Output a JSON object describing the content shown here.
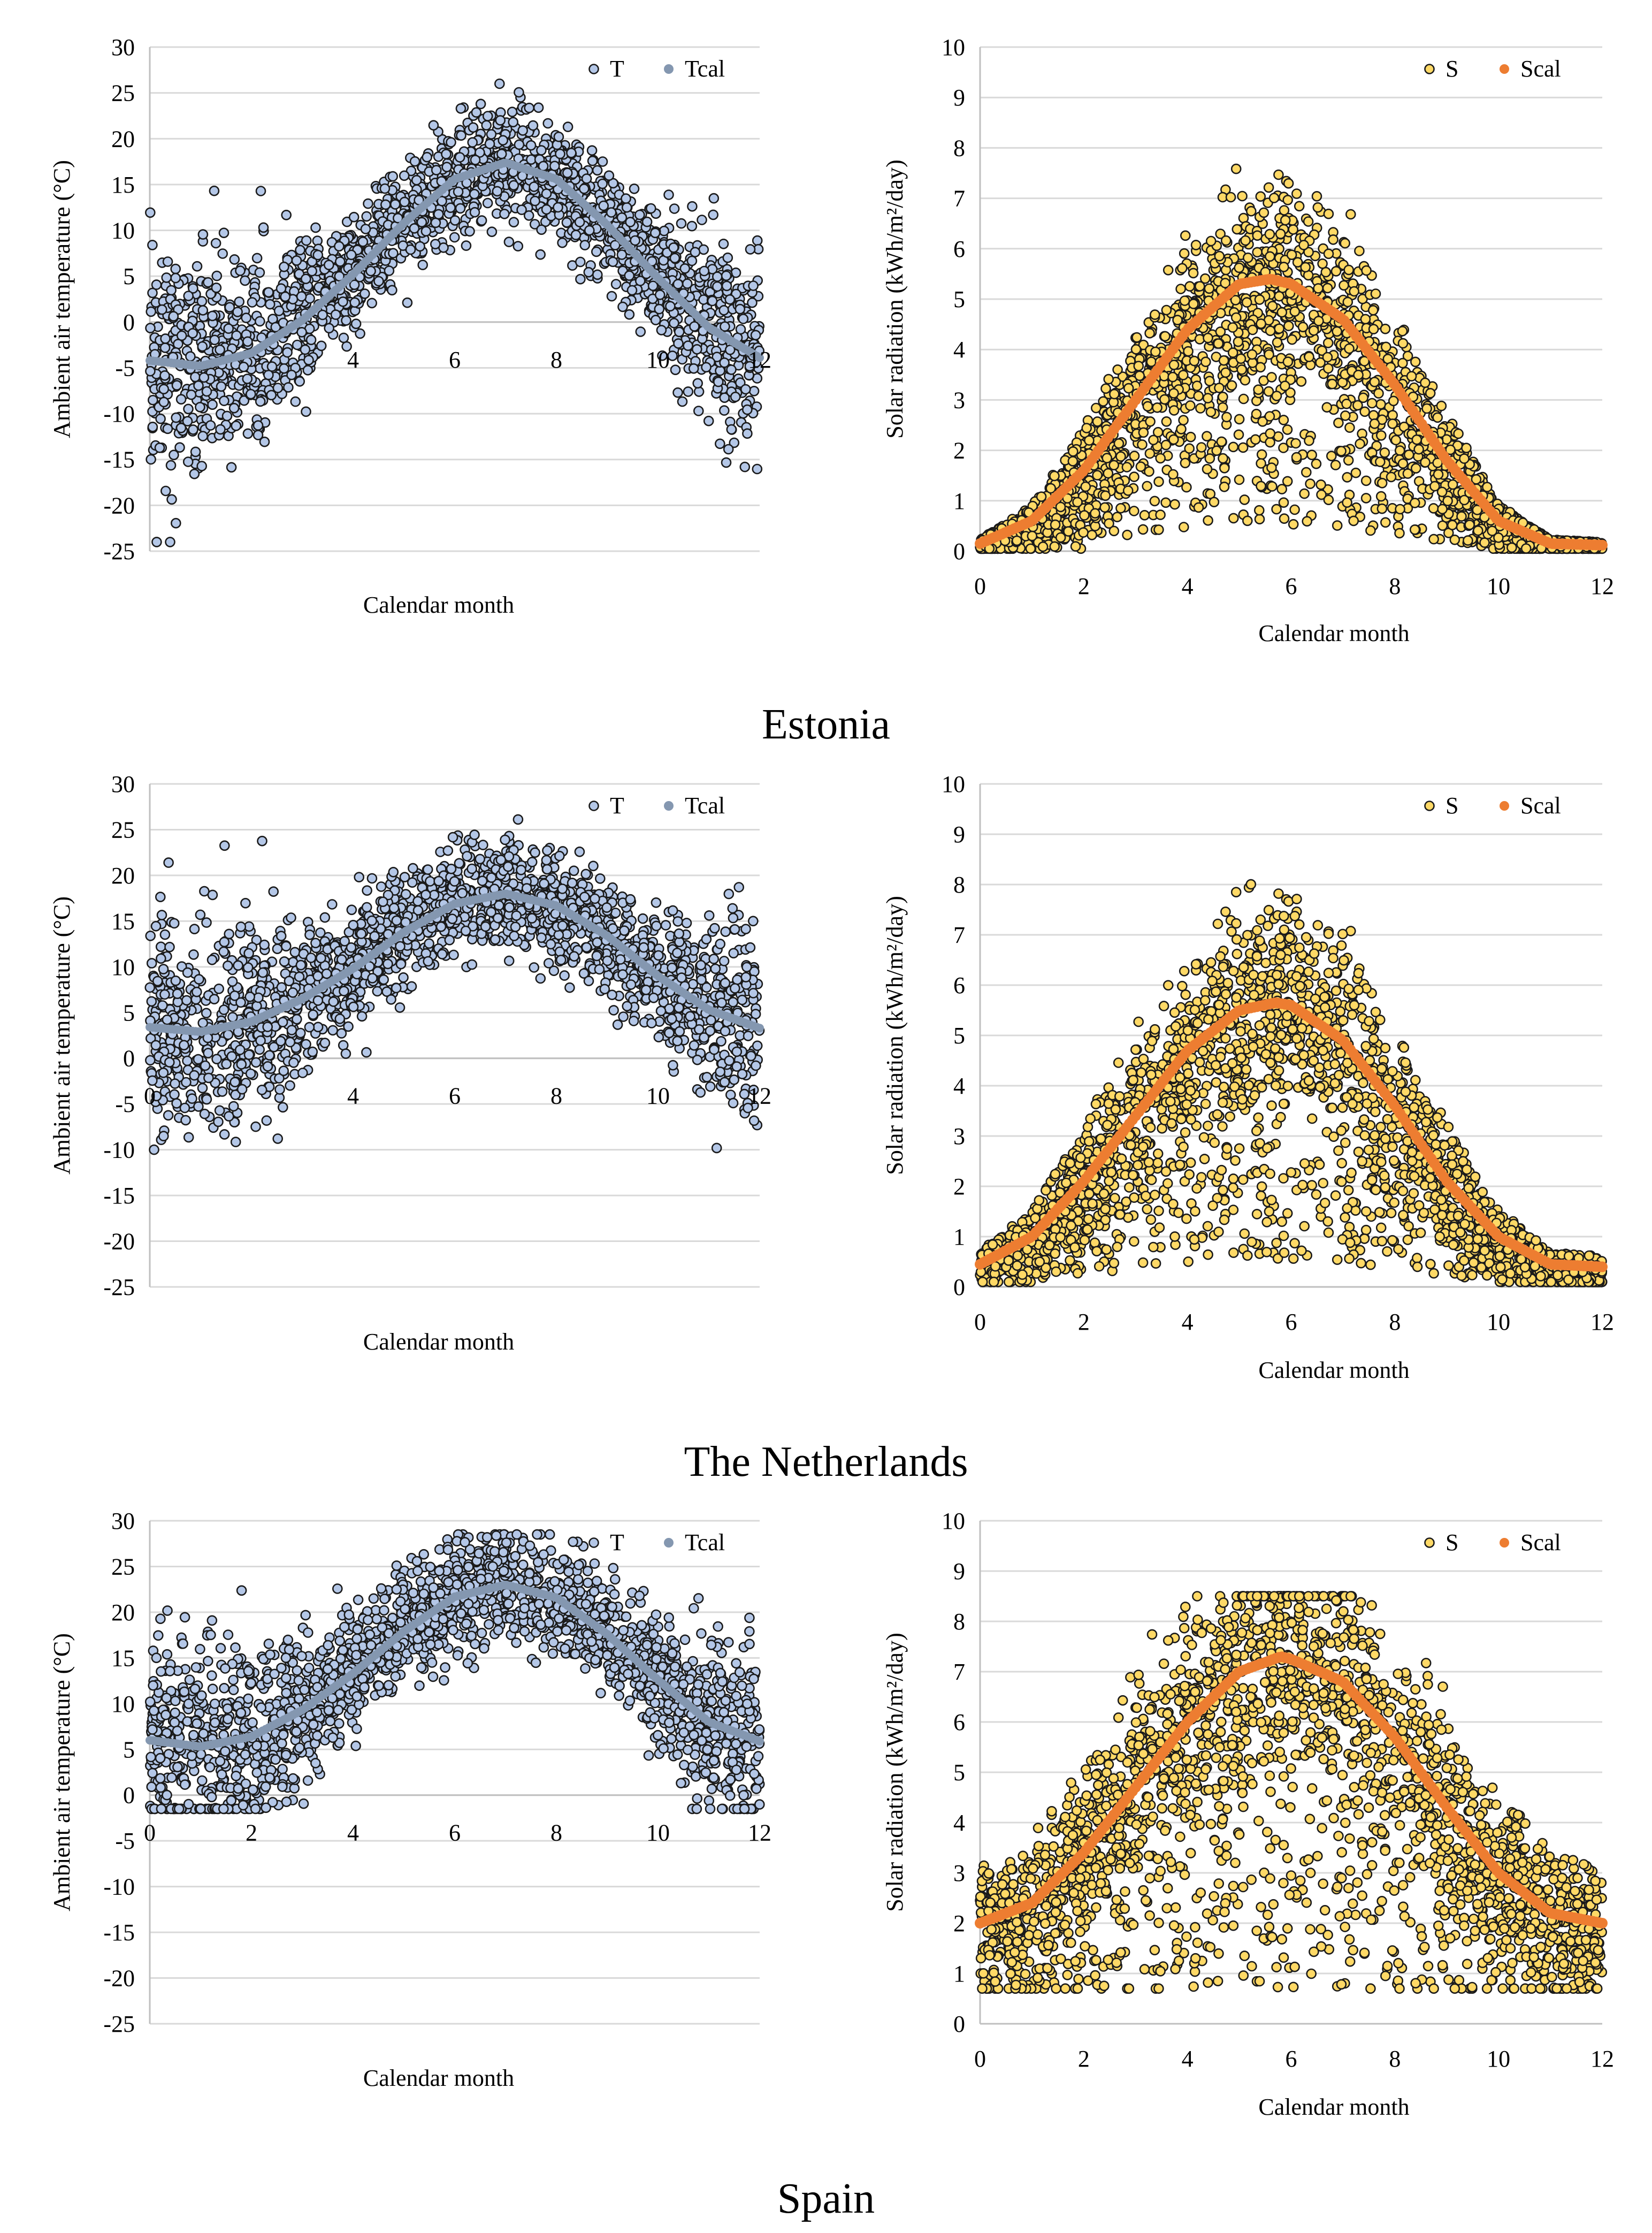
{
  "captions": [
    "Estonia",
    "The Netherlands",
    "Spain"
  ],
  "legend_colors": {
    "T_fill": "#b4c7e7",
    "T_stroke": "#1a1a1a",
    "Tcal": "#8497b0",
    "S_fill": "#ffd966",
    "S_stroke": "#1a1a1a",
    "Scal": "#ed7d31"
  },
  "chart_data": [
    {
      "id": "estonia-temperature",
      "type": "scatter",
      "xlabel": "Calendar month",
      "ylabel": "Ambient air temperature (°C)",
      "xlim": [
        0,
        12
      ],
      "ylim": [
        -25,
        30
      ],
      "x_ticks": [
        "4",
        "6",
        "8",
        "10",
        "12"
      ],
      "y_ticks": [
        "30",
        "25",
        "20",
        "15",
        "10",
        "5",
        "0",
        "-5",
        "-10",
        "-15",
        "-20",
        "-25"
      ],
      "series": [
        {
          "name": "T",
          "kind": "scatter",
          "note": "daily observations; sinusoidal seasonal pattern with min ≈ -4.8 °C near month 1 and max ≈ 17.5 °C near month 6.7; spread up to ±10 °C",
          "y_min": -24,
          "y_max": 26
        },
        {
          "name": "Tcal",
          "kind": "line",
          "x": [
            0,
            1,
            2,
            3,
            4,
            5,
            6,
            7,
            8,
            9,
            10,
            11,
            12
          ],
          "y": [
            -4.2,
            -4.8,
            -3.4,
            0.2,
            5.2,
            10.8,
            15.6,
            17.4,
            15.6,
            10.6,
            4.8,
            -0.6,
            -3.9
          ]
        }
      ]
    },
    {
      "id": "estonia-solar",
      "type": "scatter",
      "xlabel": "Calendar month",
      "ylabel": "Solar radiation (kWh/m²/day)",
      "xlim": [
        0,
        12
      ],
      "ylim": [
        0,
        10
      ],
      "x_ticks": [
        "0",
        "2",
        "4",
        "6",
        "8",
        "10",
        "12"
      ],
      "y_ticks": [
        "10",
        "9",
        "8",
        "7",
        "6",
        "5",
        "4",
        "3",
        "2",
        "1",
        "0"
      ],
      "series": [
        {
          "name": "S",
          "kind": "scatter",
          "note": "daily observations; peak values up to ≈ 8.1 near month 5.5; many low (cloudy) days below the fit",
          "y_min": 0.05,
          "y_max": 8.1
        },
        {
          "name": "Scal",
          "kind": "line",
          "x": [
            0,
            1,
            2,
            3,
            4,
            5,
            5.6,
            6,
            7,
            8,
            9,
            10,
            11,
            12
          ],
          "y": [
            0.15,
            0.6,
            1.6,
            3.0,
            4.4,
            5.3,
            5.4,
            5.3,
            4.6,
            3.3,
            1.8,
            0.6,
            0.15,
            0.12
          ]
        }
      ]
    },
    {
      "id": "netherlands-temperature",
      "type": "scatter",
      "xlabel": "Calendar month",
      "ylabel": "Ambient air temperature (°C)",
      "xlim": [
        0,
        12
      ],
      "ylim": [
        -25,
        30
      ],
      "x_ticks": [
        "0",
        "4",
        "6",
        "8",
        "10",
        "12"
      ],
      "y_ticks": [
        "30",
        "25",
        "20",
        "15",
        "10",
        "5",
        "0",
        "-5",
        "-10",
        "-15",
        "-20",
        "-25"
      ],
      "series": [
        {
          "name": "T",
          "kind": "scatter",
          "note": "daily observations; min fit ≈ 3 °C near month 0.6, max fit ≈ 18 °C near month 6.8",
          "y_min": -10,
          "y_max": 28.5
        },
        {
          "name": "Tcal",
          "kind": "line",
          "x": [
            0,
            1,
            2,
            3,
            4,
            5,
            6,
            7,
            8,
            9,
            10,
            11,
            12
          ],
          "y": [
            3.4,
            2.9,
            4.0,
            6.5,
            9.8,
            13.8,
            16.9,
            18.0,
            16.7,
            13.4,
            9.0,
            5.3,
            3.3
          ]
        }
      ]
    },
    {
      "id": "netherlands-solar",
      "type": "scatter",
      "xlabel": "Calendar month",
      "ylabel": "Solar radiation (kWh/m²/day)",
      "xlim": [
        0,
        12
      ],
      "ylim": [
        0,
        10
      ],
      "x_ticks": [
        "0",
        "2",
        "4",
        "6",
        "8",
        "10",
        "12"
      ],
      "y_ticks": [
        "10",
        "9",
        "8",
        "7",
        "6",
        "5",
        "4",
        "3",
        "2",
        "1",
        "0"
      ],
      "series": [
        {
          "name": "S",
          "kind": "scatter",
          "note": "daily observations; peak values up to ≈ 8.1 near month 6",
          "y_min": 0.1,
          "y_max": 8.1
        },
        {
          "name": "Scal",
          "kind": "line",
          "x": [
            0,
            1,
            2,
            3,
            4,
            5,
            5.7,
            6,
            7,
            8,
            9,
            10,
            11,
            12
          ],
          "y": [
            0.45,
            1.0,
            2.1,
            3.4,
            4.7,
            5.5,
            5.65,
            5.6,
            4.9,
            3.6,
            2.1,
            1.0,
            0.45,
            0.4
          ]
        }
      ]
    },
    {
      "id": "spain-temperature",
      "type": "scatter",
      "xlabel": "Calendar month",
      "ylabel": "Ambient air temperature (°C)",
      "xlim": [
        0,
        12
      ],
      "ylim": [
        -25,
        30
      ],
      "x_ticks": [
        "0",
        "2",
        "4",
        "6",
        "8",
        "10",
        "12"
      ],
      "y_ticks": [
        "30",
        "25",
        "20",
        "15",
        "10",
        "5",
        "0",
        "-5",
        "-10",
        "-15",
        "-20",
        "-25"
      ],
      "series": [
        {
          "name": "T",
          "kind": "scatter",
          "note": "daily observations; min fit ≈ 5.3 °C near month 0.9, max fit ≈ 23 °C near month 6.8",
          "y_min": -1.5,
          "y_max": 28.5
        },
        {
          "name": "Tcal",
          "kind": "line",
          "x": [
            0,
            1,
            2,
            3,
            4,
            5,
            6,
            7,
            8,
            9,
            10,
            11,
            12
          ],
          "y": [
            6.0,
            5.3,
            6.4,
            9.3,
            13.3,
            17.9,
            21.7,
            23.0,
            21.6,
            17.6,
            12.6,
            8.0,
            5.9
          ]
        }
      ]
    },
    {
      "id": "spain-solar",
      "type": "scatter",
      "xlabel": "Calendar month",
      "ylabel": "Solar radiation (kWh/m²/day)",
      "xlim": [
        0,
        12
      ],
      "ylim": [
        0,
        10
      ],
      "x_ticks": [
        "0",
        "2",
        "4",
        "6",
        "8",
        "10",
        "12"
      ],
      "y_ticks": [
        "10",
        "9",
        "8",
        "7",
        "6",
        "5",
        "4",
        "3",
        "2",
        "1",
        "0"
      ],
      "series": [
        {
          "name": "S",
          "kind": "scatter",
          "note": "daily observations; peak values up to ≈ 8.5 near month 5.8",
          "y_min": 0.7,
          "y_max": 8.5
        },
        {
          "name": "Scal",
          "kind": "line",
          "x": [
            0,
            1,
            2,
            3,
            4,
            5,
            5.8,
            6,
            7,
            8,
            9,
            10,
            11,
            12
          ],
          "y": [
            2.0,
            2.4,
            3.4,
            4.7,
            6.0,
            7.0,
            7.3,
            7.25,
            6.8,
            5.7,
            4.3,
            3.0,
            2.2,
            2.0
          ]
        }
      ]
    }
  ]
}
